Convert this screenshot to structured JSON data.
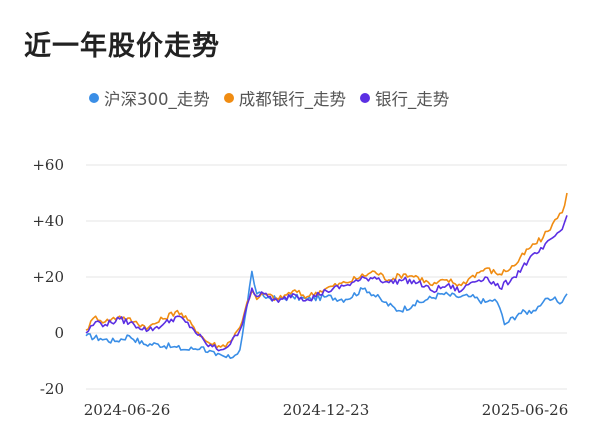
{
  "title": "近一年股价走势",
  "legend": [
    {
      "label": "沪深300_走势",
      "color": "#3a8ee6"
    },
    {
      "label": "成都银行_走势",
      "color": "#f08c12"
    },
    {
      "label": "银行_走势",
      "color": "#5b2fe3"
    }
  ],
  "chart_data": {
    "type": "line",
    "x_tick_labels": [
      "2024-06-26",
      "2024-12-23",
      "2025-06-26"
    ],
    "y_ticks": [
      60,
      40,
      20,
      0,
      -20
    ],
    "y_tick_labels": [
      "+60",
      "+40",
      "+20",
      "0",
      "-20"
    ],
    "ylim": [
      -20,
      60
    ],
    "legend_position": "top",
    "grid": true,
    "x_range": [
      0,
      100
    ],
    "series": [
      {
        "name": "沪深300_走势",
        "color": "#3a8ee6",
        "x": [
          0,
          3,
          6,
          9,
          12,
          15,
          18,
          21,
          24,
          27,
          30,
          32,
          33.5,
          34.5,
          35.5,
          37,
          40,
          43,
          46,
          50,
          54,
          58,
          62,
          65,
          68,
          71,
          74,
          77,
          80,
          83,
          85,
          86,
          87,
          90,
          93,
          95,
          97,
          99,
          100
        ],
        "values": [
          -1,
          -2,
          -3,
          -1,
          -4,
          -4,
          -5,
          -6,
          -5,
          -8,
          -9,
          -6,
          10,
          22,
          14,
          13,
          12,
          13,
          12,
          13,
          12,
          16,
          11,
          8,
          10,
          12,
          14,
          13,
          13,
          11,
          12,
          9,
          3,
          7,
          8,
          11,
          12,
          11,
          14
        ]
      },
      {
        "name": "成都银行_走势",
        "color": "#f08c12",
        "x": [
          0,
          2,
          4,
          7,
          10,
          13,
          16,
          19,
          22,
          25,
          28,
          30,
          32,
          33.5,
          34.5,
          35.5,
          37,
          40,
          43,
          46,
          50,
          54,
          57,
          60,
          63,
          66,
          69,
          72,
          75,
          78,
          80,
          83,
          86,
          89,
          92,
          95,
          97,
          99,
          100
        ],
        "values": [
          1,
          6,
          4,
          6,
          4,
          2,
          5,
          8,
          3,
          -3,
          -5,
          -3,
          2,
          11,
          15,
          12,
          14,
          12,
          15,
          13,
          16,
          18,
          20,
          22,
          19,
          21,
          20,
          17,
          19,
          17,
          20,
          23,
          21,
          24,
          30,
          34,
          39,
          43,
          50
        ]
      },
      {
        "name": "银行_走势",
        "color": "#5b2fe3",
        "x": [
          0,
          2,
          4,
          7,
          10,
          13,
          16,
          19,
          22,
          25,
          28,
          30,
          32,
          33.5,
          34.5,
          35.5,
          37,
          40,
          43,
          46,
          50,
          54,
          57,
          60,
          63,
          66,
          69,
          72,
          75,
          78,
          80,
          83,
          86,
          89,
          92,
          95,
          97,
          99,
          100
        ],
        "values": [
          0,
          4,
          3,
          5,
          3,
          1,
          3,
          6,
          2,
          -4,
          -6,
          -4,
          1,
          10,
          16,
          13,
          14,
          11,
          14,
          12,
          15,
          17,
          19,
          20,
          18,
          19,
          18,
          15,
          17,
          15,
          18,
          20,
          16,
          20,
          26,
          30,
          34,
          37,
          42
        ]
      }
    ]
  }
}
